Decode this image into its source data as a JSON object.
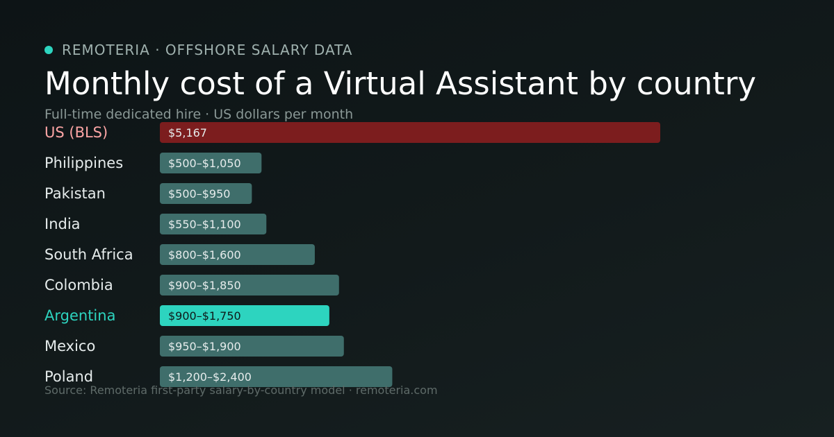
{
  "brand": {
    "label": "REMOTERIA · OFFSHORE SALARY DATA"
  },
  "chart_data": {
    "type": "bar",
    "title": "Monthly cost of a Virtual Assistant by country",
    "subtitle": "Full-time dedicated hire · US dollars per month",
    "categories": [
      "US (BLS)",
      "Philippines",
      "Pakistan",
      "India",
      "South Africa",
      "Colombia",
      "Argentina",
      "Mexico",
      "Poland"
    ],
    "series": [
      {
        "values_low": [
          5167,
          500,
          500,
          550,
          800,
          900,
          900,
          950,
          1200
        ],
        "values_high": [
          5167,
          1050,
          950,
          1100,
          1600,
          1850,
          1750,
          1900,
          2400
        ]
      }
    ],
    "data_labels": [
      "$5,167",
      "$500–$1,050",
      "$500–$950",
      "$550–$1,100",
      "$800–$1,600",
      "$900–$1,850",
      "$900–$1,750",
      "$950–$1,900",
      "$1,200–$2,400"
    ],
    "highlight": {
      "US (BLS)": "benchmark",
      "Argentina": "featured"
    },
    "xlim": [
      0,
      5167
    ],
    "grid": false
  },
  "colors": {
    "benchmark_bar": "#7c1d1e",
    "benchmark_label": "#fca5a5",
    "featured_bar": "#2dd4bf",
    "featured_label": "#2dd4bf",
    "default_bar": "#3f6e6b",
    "default_label": "#e6ecec",
    "bar_text_light": "#e6ecec",
    "bar_text_dark": "#0f1a1a"
  },
  "source": "Source: Remoteria first-party salary-by-country model · remoteria.com"
}
